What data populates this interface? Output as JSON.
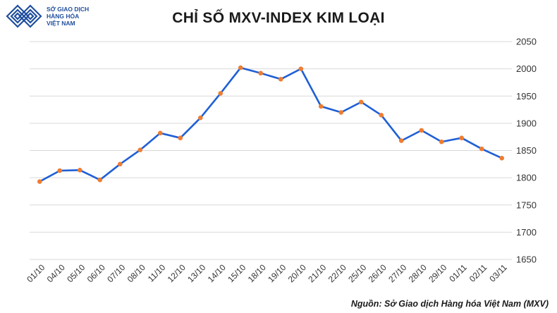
{
  "header": {
    "logo_lines": [
      "SỞ GIAO DỊCH",
      "HÀNG HÓA",
      "VIỆT NAM"
    ],
    "title": "CHỈ SỐ MXV-INDEX KIM LOẠI"
  },
  "footer": {
    "source": "Nguồn: Sở Giao dịch Hàng hóa Việt Nam (MXV)"
  },
  "colors": {
    "line": "#1f5fd6",
    "marker": "#ee7d31",
    "grid": "#d9d9d9",
    "logo": "#1f4e9e"
  },
  "chart_data": {
    "type": "line",
    "categories": [
      "01/10",
      "04/10",
      "05/10",
      "06/10",
      "07/10",
      "08/10",
      "11/10",
      "12/10",
      "13/10",
      "14/10",
      "15/10",
      "18/10",
      "19/10",
      "20/10",
      "21/10",
      "22/10",
      "25/10",
      "26/10",
      "27/10",
      "28/10",
      "29/10",
      "01/11",
      "02/11",
      "03/11"
    ],
    "series": [
      {
        "values": [
          1793,
          1813,
          1814,
          1796,
          1825,
          1851,
          1882,
          1873,
          1910,
          1955,
          2002,
          1992,
          1981,
          2000,
          1931,
          1920,
          1939,
          1915,
          1868,
          1887,
          1866,
          1873,
          1853,
          1836
        ]
      }
    ],
    "yticks": [
      1650,
      1700,
      1750,
      1800,
      1850,
      1900,
      1950,
      2000,
      2050
    ],
    "ylim": [
      1650,
      2050
    ],
    "grid": true,
    "legend": "none"
  }
}
